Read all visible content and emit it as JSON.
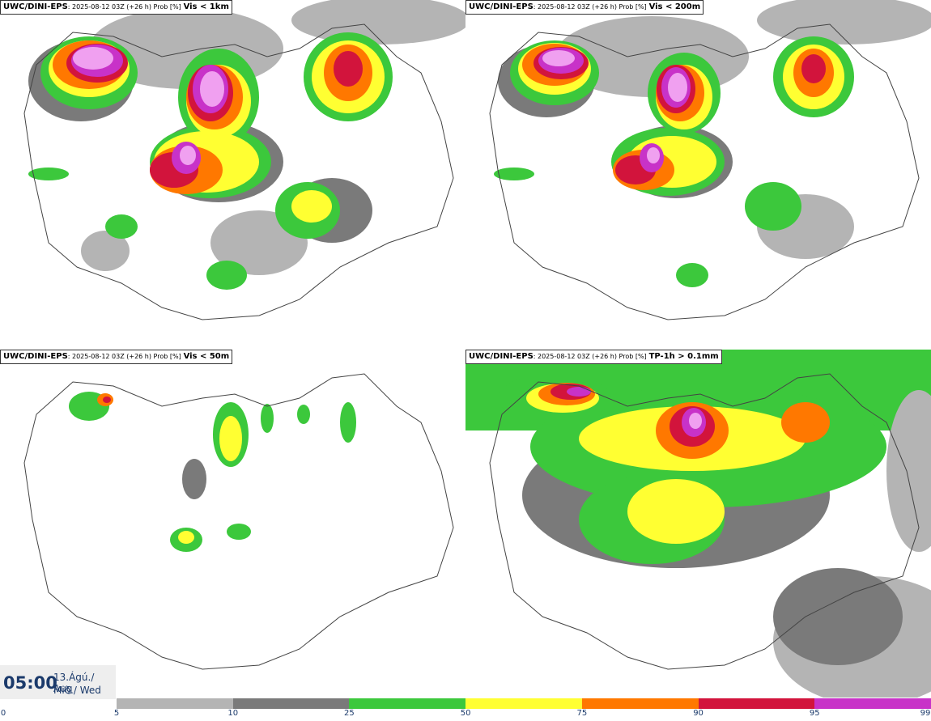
{
  "panels": [
    {
      "id": "tl",
      "brand": "UWC/DINI-EPS",
      "meta": ": 2025-08-12 03Z (+26 h) Prob [%]",
      "criterion": "Vis < 1km"
    },
    {
      "id": "tr",
      "brand": "UWC/DINI-EPS",
      "meta": ": 2025-08-12 03Z (+26 h) Prob [%]",
      "criterion": "Vis < 200m"
    },
    {
      "id": "bl",
      "brand": "UWC/DINI-EPS",
      "meta": ": 2025-08-12 03Z (+26 h) Prob [%]",
      "criterion": "Vis < 50m"
    },
    {
      "id": "br",
      "brand": "UWC/DINI-EPS",
      "meta": ": 2025-08-12 03Z (+26 h) Prob [%]",
      "criterion": "TP-1h > 0.1mm"
    }
  ],
  "valid_time": {
    "time": "05:00",
    "date_line1": "13.Ágú./ Aug",
    "date_line2": "Mið./ Wed"
  },
  "colorbar": {
    "labels": [
      "0",
      "5",
      "10",
      "25",
      "50",
      "75",
      "90",
      "95",
      "99"
    ],
    "colors": [
      "#ffffff",
      "#b4b4b4",
      "#7a7a7a",
      "#3cc83c",
      "#ffff32",
      "#ff7800",
      "#d2143c",
      "#c832c8",
      "#f0a0f0"
    ]
  },
  "colors": {
    "c5": "#b4b4b4",
    "c10": "#7a7a7a",
    "c25": "#3cc83c",
    "c50": "#ffff32",
    "c75": "#ff7800",
    "c90": "#d2143c",
    "c95": "#c832c8",
    "c99": "#f0a0f0",
    "outline": "#444444",
    "text_dark": "#1b3a6b"
  }
}
